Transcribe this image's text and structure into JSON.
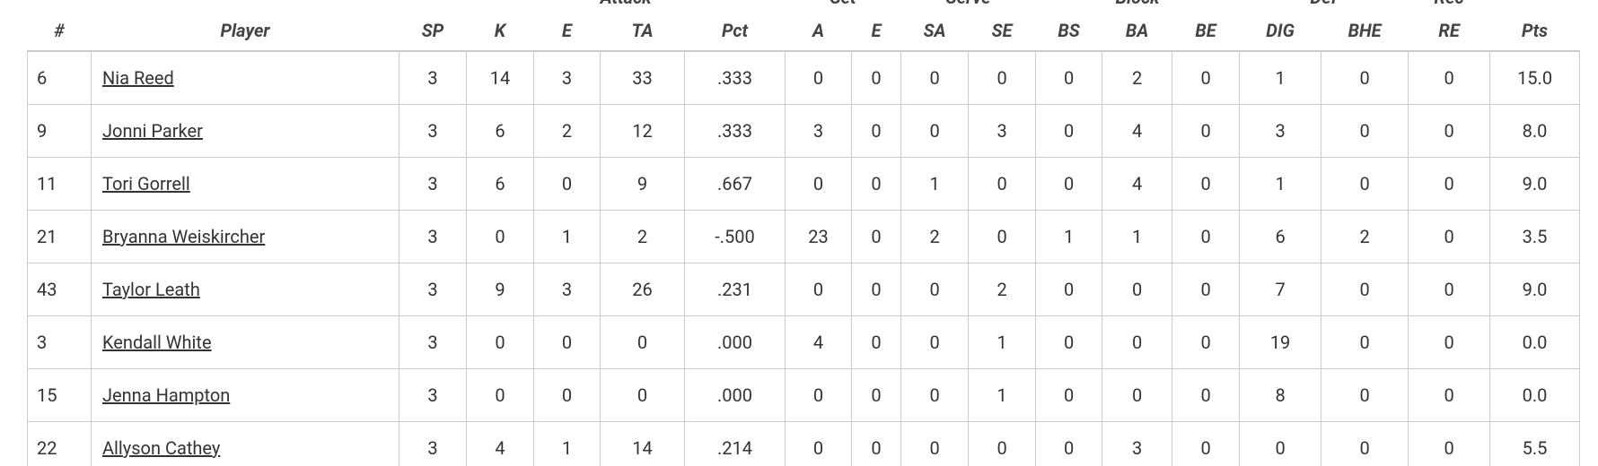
{
  "table": {
    "group_headers": [
      "Attack",
      "Set",
      "Serve",
      "Block",
      "Def",
      "Rec"
    ],
    "columns": [
      "#",
      "Player",
      "SP",
      "K",
      "E",
      "TA",
      "Pct",
      "A",
      "E",
      "SA",
      "SE",
      "BS",
      "BA",
      "BE",
      "DIG",
      "BHE",
      "RE",
      "Pts"
    ],
    "rows": [
      [
        "6",
        "Nia Reed",
        "3",
        "14",
        "3",
        "33",
        ".333",
        "0",
        "0",
        "0",
        "0",
        "0",
        "2",
        "0",
        "1",
        "0",
        "0",
        "15.0"
      ],
      [
        "9",
        "Jonni Parker",
        "3",
        "6",
        "2",
        "12",
        ".333",
        "3",
        "0",
        "0",
        "3",
        "0",
        "4",
        "0",
        "3",
        "0",
        "0",
        "8.0"
      ],
      [
        "11",
        "Tori Gorrell",
        "3",
        "6",
        "0",
        "9",
        ".667",
        "0",
        "0",
        "1",
        "0",
        "0",
        "4",
        "0",
        "1",
        "0",
        "0",
        "9.0"
      ],
      [
        "21",
        "Bryanna Weiskircher",
        "3",
        "0",
        "1",
        "2",
        "-.500",
        "23",
        "0",
        "2",
        "0",
        "1",
        "1",
        "0",
        "6",
        "2",
        "0",
        "3.5"
      ],
      [
        "43",
        "Taylor Leath",
        "3",
        "9",
        "3",
        "26",
        ".231",
        "0",
        "0",
        "0",
        "2",
        "0",
        "0",
        "0",
        "7",
        "0",
        "0",
        "9.0"
      ],
      [
        "3",
        "Kendall White",
        "3",
        "0",
        "0",
        "0",
        ".000",
        "4",
        "0",
        "0",
        "1",
        "0",
        "0",
        "0",
        "19",
        "0",
        "0",
        "0.0"
      ],
      [
        "15",
        "Jenna Hampton",
        "3",
        "0",
        "0",
        "0",
        ".000",
        "0",
        "0",
        "0",
        "1",
        "0",
        "0",
        "0",
        "8",
        "0",
        "0",
        "0.0"
      ],
      [
        "22",
        "Allyson Cathey",
        "3",
        "4",
        "1",
        "14",
        ".214",
        "0",
        "0",
        "0",
        "0",
        "0",
        "3",
        "0",
        "0",
        "0",
        "0",
        "5.5"
      ]
    ]
  }
}
